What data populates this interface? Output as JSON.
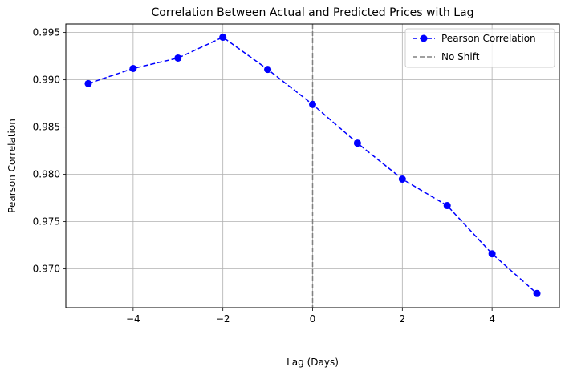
{
  "chart_data": {
    "type": "line",
    "title": "Correlation Between Actual and Predicted Prices with Lag",
    "xlabel": "Lag (Days)",
    "ylabel": "Pearson Correlation",
    "xlim": [
      -5.5,
      5.5
    ],
    "ylim": [
      0.9659,
      0.9959
    ],
    "xticks": [
      -4,
      -2,
      0,
      2,
      4
    ],
    "xtick_labels": [
      "−4",
      "−2",
      "0",
      "2",
      "4"
    ],
    "yticks": [
      0.97,
      0.975,
      0.98,
      0.985,
      0.99,
      0.995
    ],
    "ytick_labels": [
      "0.970",
      "0.975",
      "0.980",
      "0.985",
      "0.990",
      "0.995"
    ],
    "grid": true,
    "legend_position": "top-right",
    "series": [
      {
        "name": "Pearson Correlation",
        "color": "#0000ff",
        "linestyle": "dashed",
        "marker": "circle",
        "x": [
          -5,
          -4,
          -3,
          -2,
          -1,
          0,
          1,
          2,
          3,
          4,
          5
        ],
        "y": [
          0.9896,
          0.9912,
          0.9923,
          0.9945,
          0.9911,
          0.9874,
          0.9833,
          0.9795,
          0.9767,
          0.9716,
          0.9674
        ]
      }
    ],
    "reference_lines": [
      {
        "name": "No Shift",
        "orientation": "vertical",
        "x": 0,
        "color": "#808080",
        "linestyle": "dashed"
      }
    ]
  }
}
